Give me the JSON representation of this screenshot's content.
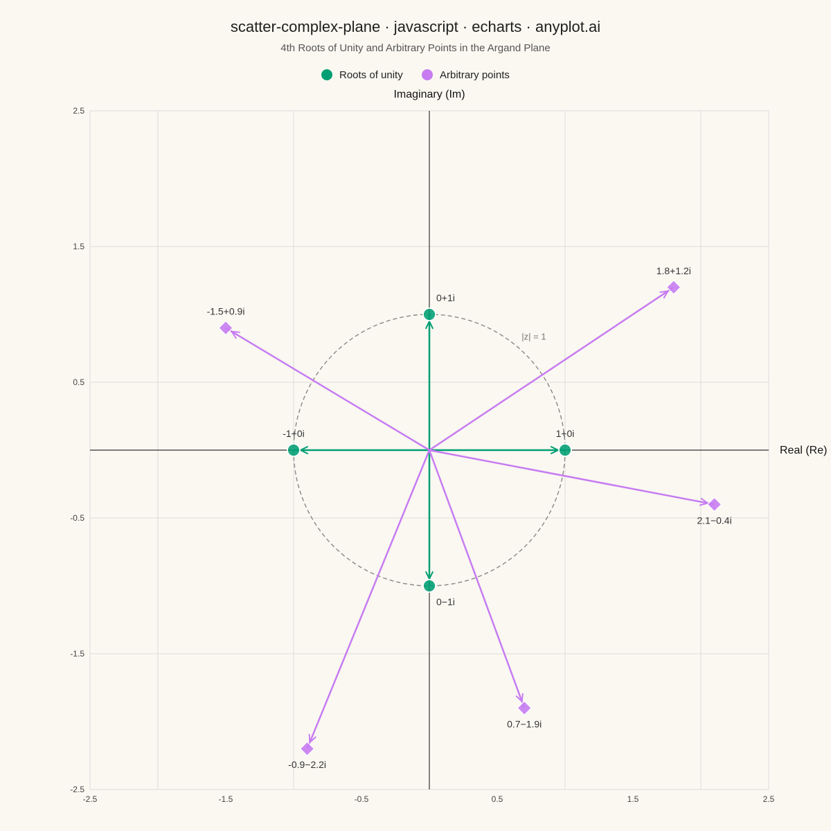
{
  "chart_data": {
    "type": "scatter",
    "title": "scatter-complex-plane · javascript · echarts · anyplot.ai",
    "subtitle": "4th Roots of Unity and Arbitrary Points in the Argand Plane",
    "xlabel": "Real (Re)",
    "ylabel": "Imaginary (Im)",
    "xlim": [
      -2.5,
      2.5
    ],
    "ylim": [
      -2.5,
      2.5
    ],
    "x_ticks": [
      "-2.5",
      "-1.5",
      "-0.5",
      "0.5",
      "1.5",
      "2.5"
    ],
    "y_ticks": [
      "2.5",
      "1.5",
      "0.5",
      "-0.5",
      "-1.5",
      "-2.5"
    ],
    "grid": true,
    "legend_position": "top-center",
    "unit_circle": {
      "radius": 1,
      "label": "|z| = 1"
    },
    "series": [
      {
        "name": "Roots of unity",
        "color": "#009E73",
        "marker": "circle",
        "points": [
          {
            "re": 1,
            "im": 0,
            "label": "1+0i"
          },
          {
            "re": 0,
            "im": 1,
            "label": "0+1i"
          },
          {
            "re": -1,
            "im": 0,
            "label": "-1+0i"
          },
          {
            "re": 0,
            "im": -1,
            "label": "0−1i"
          }
        ]
      },
      {
        "name": "Arbitrary points",
        "color": "#C77CF2",
        "marker": "diamond",
        "points": [
          {
            "re": 1.8,
            "im": 1.2,
            "label": "1.8+1.2i"
          },
          {
            "re": -1.5,
            "im": 0.9,
            "label": "-1.5+0.9i"
          },
          {
            "re": 2.1,
            "im": -0.4,
            "label": "2.1−0.4i"
          },
          {
            "re": 0.7,
            "im": -1.9,
            "label": "0.7−1.9i"
          },
          {
            "re": -0.9,
            "im": -2.2,
            "label": "-0.9−2.2i"
          }
        ]
      }
    ]
  }
}
